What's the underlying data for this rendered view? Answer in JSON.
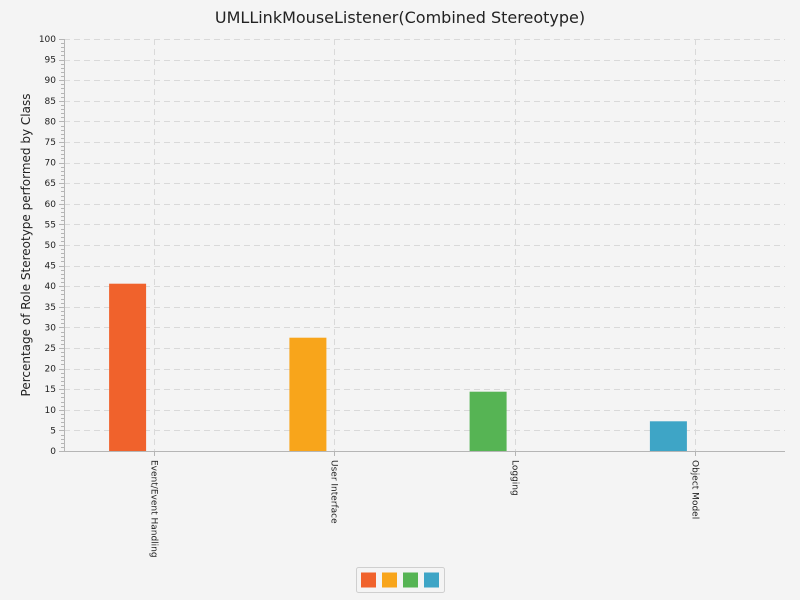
{
  "chart_data": {
    "type": "bar",
    "title": "UMLLinkMouseListener(Combined Stereotype)",
    "xlabel": "",
    "ylabel": "Percentage of Role Stereotype performed by Class",
    "categories": [
      "Event/Event Handling",
      "User Interface",
      "Logging",
      "Object Model"
    ],
    "values": [
      40.6,
      27.5,
      14.4,
      7.2
    ],
    "colors": [
      "#f0622c",
      "#f8a51b",
      "#56b454",
      "#3ea5c6"
    ],
    "ylim": [
      0,
      100
    ],
    "y_major_step": 5,
    "y_minor_step": 1,
    "yticks": [
      "0",
      "5",
      "10",
      "15",
      "20",
      "25",
      "30",
      "35",
      "40",
      "45",
      "50",
      "55",
      "60",
      "65",
      "70",
      "75",
      "80",
      "85",
      "90",
      "95",
      "100"
    ],
    "grid": true,
    "legend": {
      "placement": "bottom-center",
      "entries": [
        {
          "color": "#f0622c"
        },
        {
          "color": "#f8a51b"
        },
        {
          "color": "#56b454"
        },
        {
          "color": "#3ea5c6"
        }
      ]
    }
  }
}
